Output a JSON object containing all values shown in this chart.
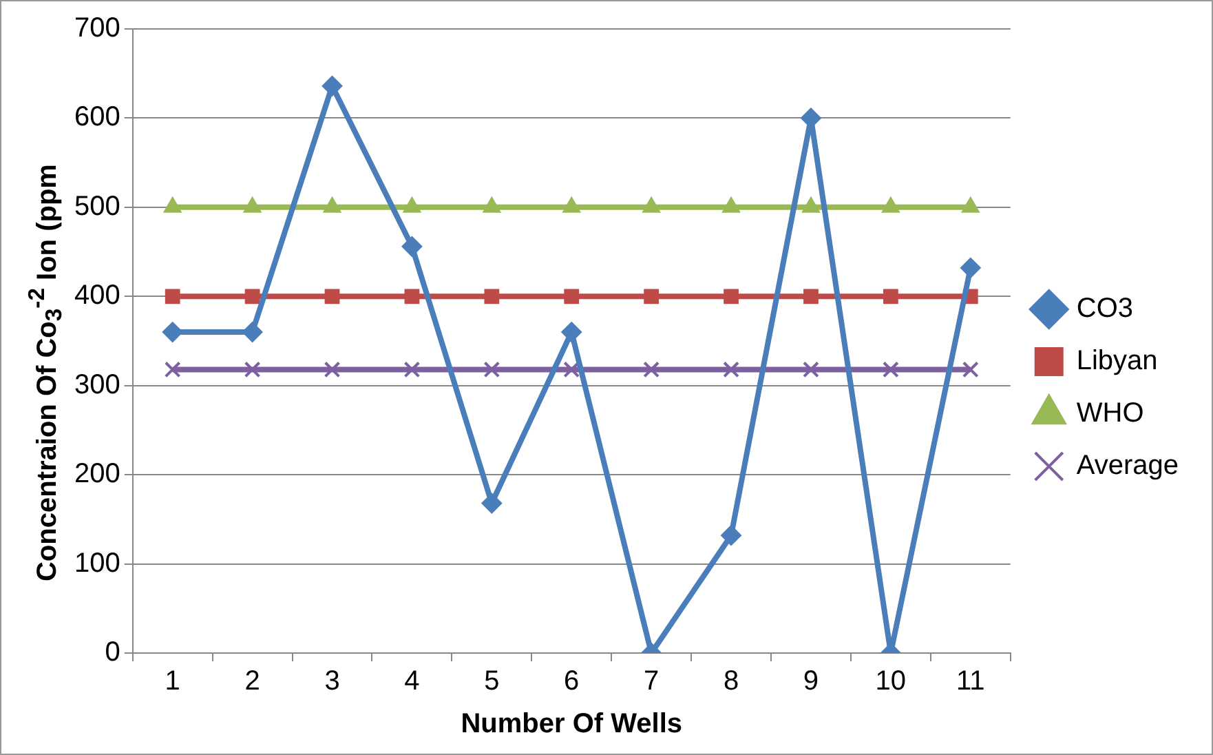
{
  "chart_data": {
    "type": "line",
    "xlabel": "Number Of Wells",
    "ylabel": "Concentraion Of Co$_{3}$$^{-2}$ Ion (ppm",
    "categories": [
      "1",
      "2",
      "3",
      "4",
      "5",
      "6",
      "7",
      "8",
      "9",
      "10",
      "11"
    ],
    "ylim": [
      0,
      700
    ],
    "yticks": [
      0,
      100,
      200,
      300,
      400,
      500,
      600,
      700
    ],
    "grid": "y",
    "legend": "right",
    "line_style": "solid",
    "series": [
      {
        "name": "CO3",
        "color": "#4a7ebb",
        "marker": "diamond",
        "values": [
          360,
          360,
          636,
          456,
          168,
          360,
          0,
          132,
          600,
          0,
          432
        ]
      },
      {
        "name": "Libyan",
        "color": "#be4b48",
        "marker": "square",
        "values": [
          400,
          400,
          400,
          400,
          400,
          400,
          400,
          400,
          400,
          400,
          400
        ]
      },
      {
        "name": "WHO",
        "color": "#98b954",
        "marker": "triangle",
        "values": [
          500,
          500,
          500,
          500,
          500,
          500,
          500,
          500,
          500,
          500,
          500
        ]
      },
      {
        "name": "Average",
        "color": "#7d60a0",
        "marker": "cross",
        "values": [
          318,
          318,
          318,
          318,
          318,
          318,
          318,
          318,
          318,
          318,
          318
        ]
      }
    ]
  }
}
